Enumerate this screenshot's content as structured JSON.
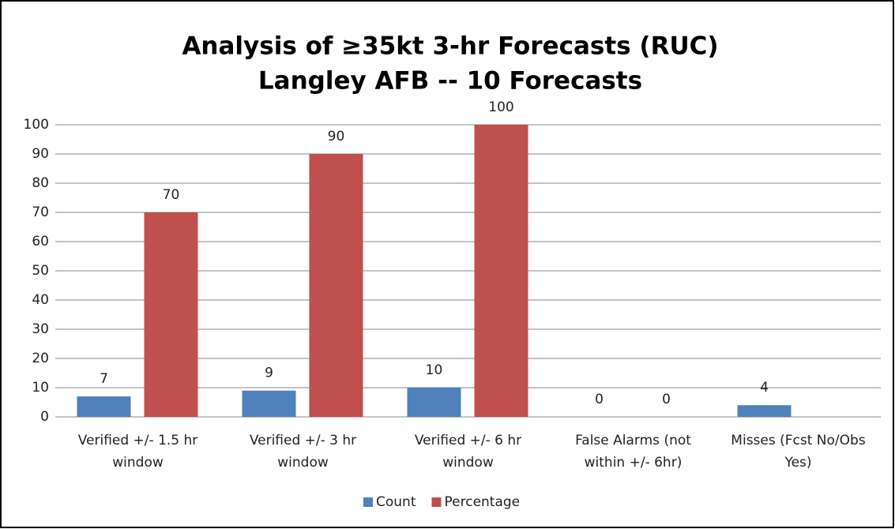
{
  "chart_data": {
    "type": "bar",
    "title": "Analysis of ≥35kt 3-hr Forecasts  (RUC)",
    "subtitle": "Langley AFB -- 10 Forecasts",
    "categories": [
      [
        "Verified +/- 1.5 hr",
        "window"
      ],
      [
        "Verified +/- 3 hr",
        "window"
      ],
      [
        "Verified +/- 6 hr",
        "window"
      ],
      [
        "False Alarms (not",
        "within +/- 6hr)"
      ],
      [
        "Misses (Fcst No/Obs",
        "Yes)"
      ]
    ],
    "series": [
      {
        "name": "Count",
        "color": "#4f81bd",
        "values": [
          7,
          9,
          10,
          0,
          4
        ]
      },
      {
        "name": "Percentage",
        "color": "#c0504d",
        "values": [
          70,
          90,
          100,
          0,
          null
        ]
      }
    ],
    "ylim": [
      0,
      100
    ],
    "yticks": [
      0,
      10,
      20,
      30,
      40,
      50,
      60,
      70,
      80,
      90,
      100
    ],
    "grid": true,
    "legend": "bottom"
  }
}
